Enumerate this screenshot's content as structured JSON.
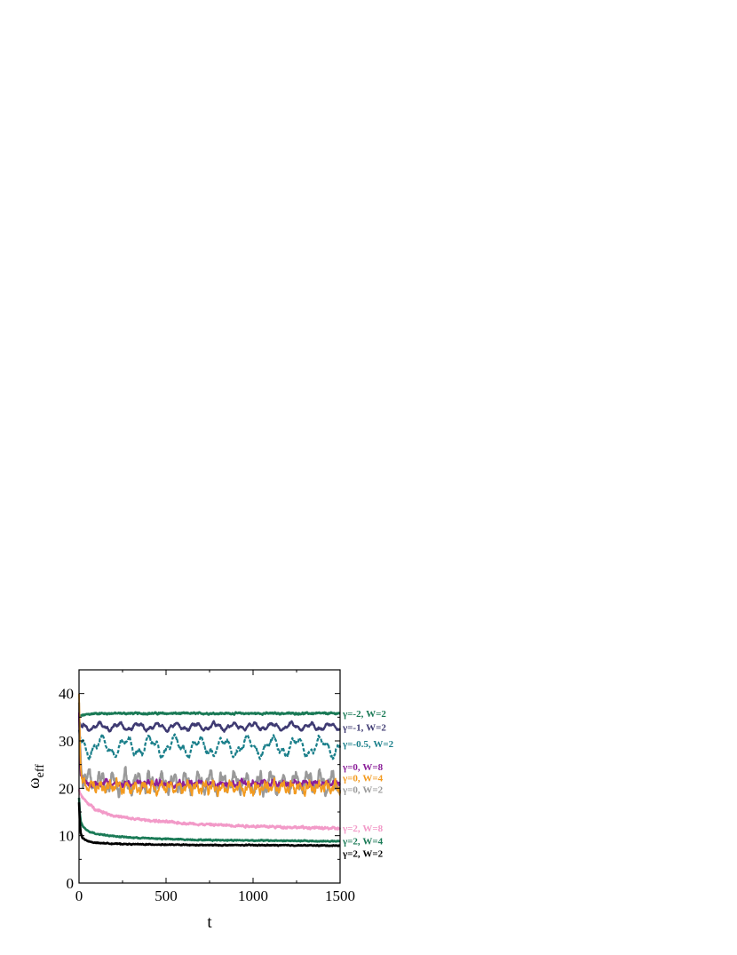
{
  "chart_data": {
    "type": "line",
    "title": "",
    "xlabel": "t",
    "ylabel": "ω",
    "ylabel_sub": "eff",
    "xlim": [
      0,
      1500
    ],
    "ylim": [
      0,
      45
    ],
    "xticks": [
      0,
      500,
      1000,
      1500
    ],
    "yticks": [
      0,
      10,
      20,
      30,
      40
    ],
    "grid": false,
    "legend": "inline-right",
    "series": [
      {
        "name": "γ=-2, W=2",
        "color": "#1a7a56",
        "dash": false,
        "width": 2.6,
        "noise": 0.3,
        "osc_amp": 0,
        "osc_period": 0,
        "x": [
          0,
          5,
          10,
          20,
          50,
          100,
          200,
          400,
          700,
          1000,
          1500
        ],
        "y": [
          35,
          35.2,
          35.3,
          35.4,
          35.6,
          35.8,
          35.8,
          35.8,
          35.8,
          35.8,
          35.8
        ]
      },
      {
        "name": "γ=-1, W=2",
        "color": "#3e3a72",
        "dash": false,
        "width": 2.4,
        "noise": 0.4,
        "osc_amp": 0.6,
        "osc_period": 110,
        "x": [
          0,
          5,
          10,
          20,
          50,
          100,
          200,
          400,
          700,
          1000,
          1500
        ],
        "y": [
          34,
          33.6,
          33.3,
          33.1,
          33,
          33,
          33,
          33,
          33,
          33,
          33
        ]
      },
      {
        "name": "γ=-0.5, W=2",
        "color": "#1a7f8a",
        "dash": true,
        "width": 2.2,
        "noise": 0.6,
        "osc_amp": 1.6,
        "osc_period": 140,
        "x": [
          0,
          5,
          10,
          20,
          50,
          100,
          200,
          400,
          700,
          1000,
          1500
        ],
        "y": [
          32,
          31,
          30.2,
          29.5,
          29,
          28.8,
          28.8,
          28.8,
          28.8,
          28.8,
          28.8
        ]
      },
      {
        "name": "γ=0, W=2",
        "color": "#999999",
        "dash": false,
        "width": 2.4,
        "noise": 1.4,
        "osc_amp": 1.5,
        "osc_period": 70,
        "x": [
          0,
          5,
          10,
          20,
          50,
          100,
          200,
          400,
          700,
          1000,
          1500
        ],
        "y": [
          38,
          30,
          25,
          22.5,
          21.5,
          21.3,
          21.2,
          21.2,
          21.2,
          21.2,
          21.2
        ]
      },
      {
        "name": "γ=0, W=8",
        "color": "#8b1f99",
        "dash": false,
        "width": 2.2,
        "noise": 0.8,
        "osc_amp": 0.3,
        "osc_period": 60,
        "x": [
          0,
          5,
          10,
          20,
          50,
          100,
          200,
          400,
          700,
          1000,
          1500
        ],
        "y": [
          36,
          28,
          23,
          21.3,
          21,
          21,
          21,
          21,
          21,
          21,
          21
        ]
      },
      {
        "name": "γ=0, W=4",
        "color": "#f39a1e",
        "dash": false,
        "width": 1.8,
        "noise": 1.2,
        "osc_amp": 0.8,
        "osc_period": 50,
        "x": [
          0,
          5,
          10,
          20,
          50,
          100,
          200,
          400,
          700,
          1000,
          1500
        ],
        "y": [
          40,
          30,
          24,
          21.5,
          20.5,
          20.3,
          20.2,
          20.2,
          20.2,
          20.2,
          20.2
        ]
      },
      {
        "name": "γ=2, W=8",
        "color": "#f29ac8",
        "dash": false,
        "width": 2.6,
        "noise": 0.4,
        "osc_amp": 0,
        "osc_period": 0,
        "x": [
          0,
          5,
          10,
          20,
          50,
          100,
          200,
          300,
          500,
          700,
          1000,
          1500
        ],
        "y": [
          19.8,
          19.2,
          18.7,
          18,
          16.8,
          15.5,
          14.2,
          13.6,
          12.9,
          12.4,
          12,
          11.5
        ]
      },
      {
        "name": "γ=2, W=4",
        "color": "#1a7a56",
        "dash": false,
        "width": 2.6,
        "noise": 0.2,
        "osc_amp": 0,
        "osc_period": 0,
        "x": [
          0,
          5,
          10,
          20,
          50,
          100,
          200,
          300,
          500,
          700,
          1000,
          1500
        ],
        "y": [
          18,
          14.5,
          13,
          12,
          11,
          10.4,
          9.9,
          9.6,
          9.3,
          9.1,
          9,
          8.8
        ]
      },
      {
        "name": "γ=2, W=2",
        "color": "#000000",
        "dash": false,
        "width": 2.6,
        "noise": 0.15,
        "osc_amp": 0,
        "osc_period": 0,
        "x": [
          0,
          5,
          10,
          20,
          50,
          100,
          200,
          300,
          500,
          700,
          1000,
          1500
        ],
        "y": [
          17,
          12.5,
          10.5,
          9.5,
          8.8,
          8.5,
          8.3,
          8.2,
          8.1,
          8,
          8,
          7.9
        ]
      }
    ]
  }
}
